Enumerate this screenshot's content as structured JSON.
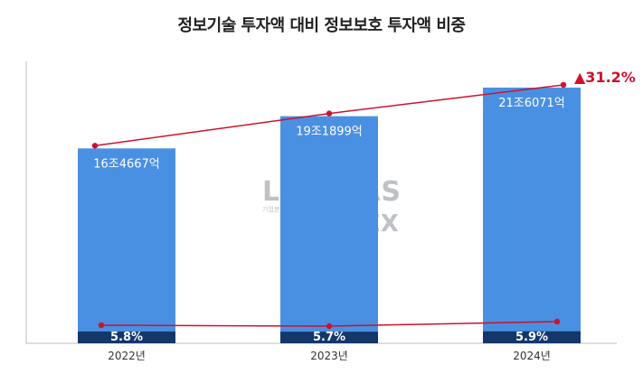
{
  "title": "정보기술 투자액 대비 정보보호 투자액 비중",
  "watermark": {
    "brand": "LEADERS",
    "brand_line2": "INDEX",
    "sub": "기업분석연구소"
  },
  "chart_data": {
    "type": "bar",
    "title": "정보기술 투자액 대비 정보보호 투자액 비중",
    "categories": [
      "2022년",
      "2023년",
      "2024년"
    ],
    "xlabel": "",
    "ylabel": "",
    "series": [
      {
        "values": [
          16.4667,
          19.1899,
          21.6071
        ],
        "labels": [
          "16조4667억",
          "19조1899억",
          "21조6071억"
        ],
        "color": "#4a90e2"
      },
      {
        "values": [
          5.8,
          5.7,
          5.9
        ],
        "labels": [
          "5.8%",
          "5.7%",
          "5.9%"
        ],
        "color": "#14376a"
      }
    ],
    "growth_annotation": "▲31.2%",
    "line_color": "#d0112b",
    "grid": false,
    "legend": "none"
  }
}
